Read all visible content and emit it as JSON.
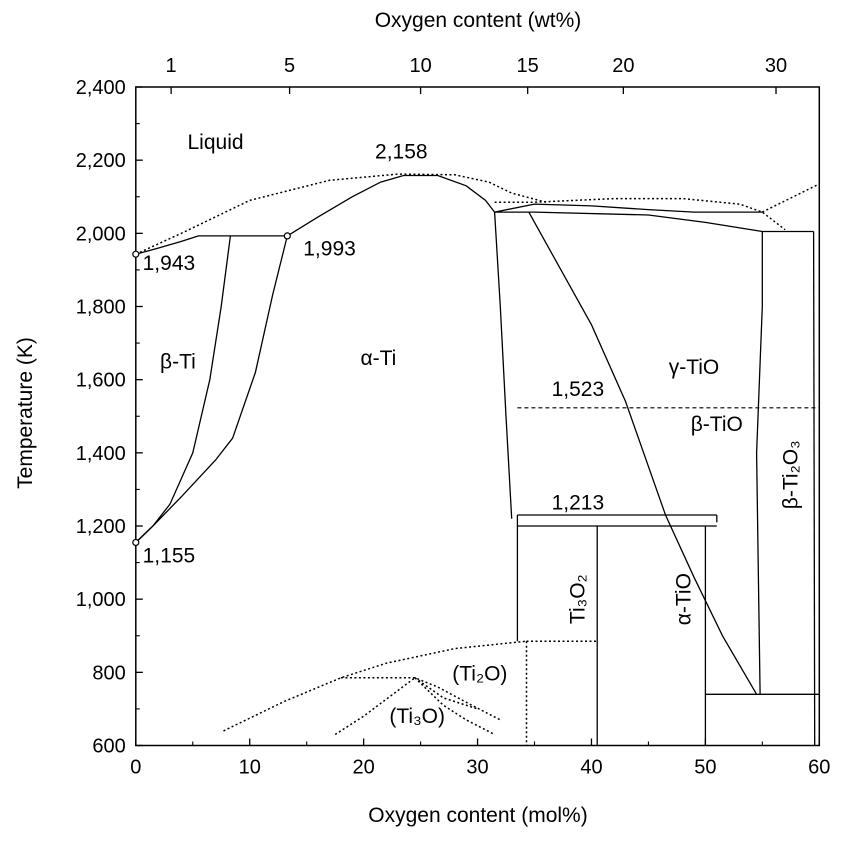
{
  "chart_data": {
    "type": "phase-diagram",
    "title": "",
    "xlabel": "Oxygen content (mol%)",
    "ylabel": "Temperature (K)",
    "x2label": "Oxygen content (wt%)",
    "xlim": [
      0,
      60
    ],
    "ylim": [
      600,
      2400
    ],
    "x_ticks": [
      0,
      10,
      20,
      30,
      40,
      50,
      60
    ],
    "x_tick_labels": [
      "0",
      "10",
      "20",
      "30",
      "40",
      "50",
      "60"
    ],
    "y_ticks": [
      600,
      800,
      1000,
      1200,
      1400,
      1600,
      1800,
      2000,
      2200,
      2400
    ],
    "y_tick_labels": [
      "600",
      "800",
      "1,000",
      "1,200",
      "1,400",
      "1,600",
      "1,800",
      "2,000",
      "2,200",
      "2,400"
    ],
    "top_ticks": [
      {
        "label": "1",
        "mol": 3.1
      },
      {
        "label": "5",
        "mol": 13.5
      },
      {
        "label": "10",
        "mol": 25.0
      },
      {
        "label": "15",
        "mol": 34.4
      },
      {
        "label": "20",
        "mol": 42.8
      },
      {
        "label": "30",
        "mol": 56.2
      }
    ],
    "phase_labels": [
      {
        "text": "Liquid",
        "x": 7.0,
        "y": 2230
      },
      {
        "text": "β-Ti",
        "x": 3.7,
        "y": 1630
      },
      {
        "text": "α-Ti",
        "x": 21.3,
        "y": 1640
      },
      {
        "text": "γ-TiO",
        "x": 49.0,
        "y": 1615
      },
      {
        "text": "β-TiO",
        "x": 51.0,
        "y": 1460
      },
      {
        "text": "β-Ti₂O₃",
        "x": 58.1,
        "y": 1340
      },
      {
        "text": "Ti₃O₂",
        "x": 39.4,
        "y": 1000
      },
      {
        "text": "α-TiO",
        "x": 48.7,
        "y": 1000
      },
      {
        "text": "(Ti₂O)",
        "x": 30.2,
        "y": 778
      },
      {
        "text": "(Ti₃O)",
        "x": 24.7,
        "y": 662
      }
    ],
    "temperature_annotations": [
      {
        "text": "2,158",
        "x": 21.0,
        "y": 2204
      },
      {
        "text": "1,943",
        "x": 0.6,
        "y": 1900
      },
      {
        "text": "1,993",
        "x": 14.7,
        "y": 1940
      },
      {
        "text": "1,155",
        "x": 0.6,
        "y": 1100
      },
      {
        "text": "1,523",
        "x": 36.5,
        "y": 1555
      },
      {
        "text": "1,213",
        "x": 36.5,
        "y": 1245
      }
    ],
    "special_points": [
      {
        "x": 0,
        "y": 1943
      },
      {
        "x": 13.3,
        "y": 1993
      },
      {
        "x": 0,
        "y": 1155
      }
    ],
    "solid_curves": [
      [
        [
          0,
          1943
        ],
        [
          2,
          1960
        ],
        [
          4,
          1978
        ],
        [
          5.5,
          1993
        ],
        [
          8.3,
          1993
        ]
      ],
      [
        [
          8.3,
          1993
        ],
        [
          7.5,
          1800
        ],
        [
          6.5,
          1600
        ],
        [
          5,
          1400
        ],
        [
          3,
          1260
        ],
        [
          1.5,
          1200
        ],
        [
          0,
          1155
        ]
      ],
      [
        [
          0,
          1155
        ],
        [
          1.5,
          1200
        ],
        [
          4,
          1280
        ],
        [
          7,
          1380
        ],
        [
          8.5,
          1440
        ],
        [
          10.5,
          1620
        ],
        [
          12,
          1830
        ],
        [
          13.3,
          1993
        ]
      ],
      [
        [
          8.3,
          1993
        ],
        [
          13.3,
          1993
        ]
      ],
      [
        [
          13.3,
          1993
        ],
        [
          16,
          2045
        ],
        [
          19,
          2100
        ],
        [
          21.5,
          2140
        ],
        [
          23.5,
          2158
        ],
        [
          26.5,
          2158
        ],
        [
          29,
          2130
        ],
        [
          30.7,
          2090
        ],
        [
          31.5,
          2058
        ]
      ],
      [
        [
          31.5,
          2058
        ],
        [
          32,
          1800
        ],
        [
          32.5,
          1500
        ],
        [
          33,
          1220
        ]
      ],
      [
        [
          31.5,
          2058
        ],
        [
          35,
          2080
        ],
        [
          40,
          2075
        ],
        [
          45,
          2065
        ],
        [
          49,
          2058
        ],
        [
          55,
          2058
        ]
      ],
      [
        [
          31.5,
          2058
        ],
        [
          35,
          2058
        ],
        [
          45,
          2050
        ],
        [
          50,
          2030
        ],
        [
          55,
          2005
        ],
        [
          59.5,
          2005
        ]
      ],
      [
        [
          34.5,
          2058
        ],
        [
          37.5,
          1890
        ],
        [
          40,
          1750
        ],
        [
          43,
          1540
        ],
        [
          46.5,
          1230
        ],
        [
          49,
          1060
        ],
        [
          51.5,
          900
        ],
        [
          54.5,
          740
        ]
      ],
      [
        [
          55,
          2005
        ],
        [
          55,
          1800
        ],
        [
          54.5,
          1400
        ],
        [
          54.8,
          740
        ]
      ],
      [
        [
          33.5,
          1230
        ],
        [
          51,
          1230
        ]
      ],
      [
        [
          33.5,
          1200
        ],
        [
          51,
          1200
        ]
      ],
      [
        [
          33.5,
          1230
        ],
        [
          33.5,
          885
        ]
      ],
      [
        [
          40.5,
          1200
        ],
        [
          40.5,
          600
        ]
      ],
      [
        [
          50,
          1200
        ],
        [
          50,
          600
        ]
      ],
      [
        [
          50,
          740
        ],
        [
          60,
          740
        ]
      ],
      [
        [
          51,
          1230
        ],
        [
          51,
          1210
        ]
      ],
      [
        [
          59.5,
          2005
        ],
        [
          59.6,
          600
        ]
      ]
    ],
    "dashed_curves": [
      [
        [
          33.5,
          1523
        ],
        [
          60,
          1523
        ]
      ]
    ],
    "dotted_curves": [
      [
        [
          0,
          1943
        ],
        [
          4,
          2000
        ],
        [
          10,
          2090
        ],
        [
          17,
          2145
        ],
        [
          23,
          2162
        ],
        [
          28,
          2160
        ],
        [
          31,
          2140
        ],
        [
          33,
          2110
        ],
        [
          36,
          2085
        ]
      ],
      [
        [
          31.5,
          2085
        ],
        [
          35,
          2085
        ],
        [
          42,
          2095
        ],
        [
          48,
          2095
        ],
        [
          53,
          2080
        ],
        [
          55,
          2058
        ],
        [
          57,
          2010
        ]
      ],
      [
        [
          55,
          2058
        ],
        [
          60,
          2135
        ]
      ],
      [
        [
          7.7,
          640
        ],
        [
          13,
          720
        ],
        [
          18,
          785
        ],
        [
          22,
          825
        ],
        [
          28,
          865
        ],
        [
          34.3,
          885
        ]
      ],
      [
        [
          18,
          785
        ],
        [
          24.5,
          785
        ],
        [
          26.5,
          760
        ],
        [
          29.5,
          710
        ],
        [
          32,
          670
        ]
      ],
      [
        [
          17.5,
          630
        ],
        [
          20,
          680
        ],
        [
          24.5,
          785
        ]
      ],
      [
        [
          24.5,
          785
        ],
        [
          27,
          710
        ],
        [
          29,
          670
        ],
        [
          31.5,
          630
        ]
      ],
      [
        [
          24.5,
          785
        ],
        [
          27,
          730
        ],
        [
          30,
          700
        ]
      ],
      [
        [
          34.3,
          885
        ],
        [
          40.5,
          885
        ]
      ],
      [
        [
          34.3,
          885
        ],
        [
          34.3,
          600
        ]
      ]
    ]
  }
}
